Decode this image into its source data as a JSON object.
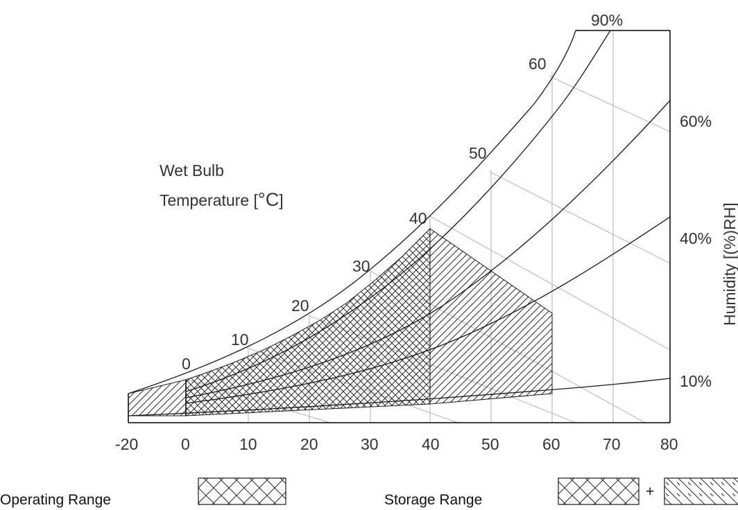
{
  "chart_data": {
    "type": "psychrometric",
    "title": "",
    "x_ticks": [
      "-20",
      "0",
      "10",
      "20",
      "30",
      "40",
      "50",
      "60",
      "70",
      "80"
    ],
    "x_range": [
      -20,
      80
    ],
    "rh_curves": [
      {
        "label": "90%",
        "rh": 90
      },
      {
        "label": "60%",
        "rh": 60
      },
      {
        "label": "40%",
        "rh": 40
      },
      {
        "label": "10%",
        "rh": 10
      }
    ],
    "rh_axis_label": "Humidity [(%)RH]",
    "wet_bulb_title_line1": "Wet Bulb",
    "wet_bulb_title_line2": "Temperature [",
    "wet_bulb_unit": "°C",
    "wet_bulb_close": "]",
    "wet_bulb_labels": [
      "0",
      "10",
      "20",
      "30",
      "40",
      "50",
      "60"
    ],
    "operating_range": {
      "temp_c": [
        0,
        40
      ],
      "rh_percent": [
        0,
        100
      ],
      "max_wet_bulb_c": 38
    },
    "storage_range": {
      "temp_c": [
        -20,
        60
      ],
      "rh_percent": [
        0,
        100
      ],
      "max_wet_bulb_c": 38
    }
  },
  "legend": {
    "operating_label": "Operating Range",
    "storage_label": "Storage Range",
    "plus": "+"
  },
  "colors": {
    "axis": "#000000",
    "grid": "#bdbdbd",
    "curve": "#1a1a1a",
    "hatch": "#2a2a2a"
  }
}
